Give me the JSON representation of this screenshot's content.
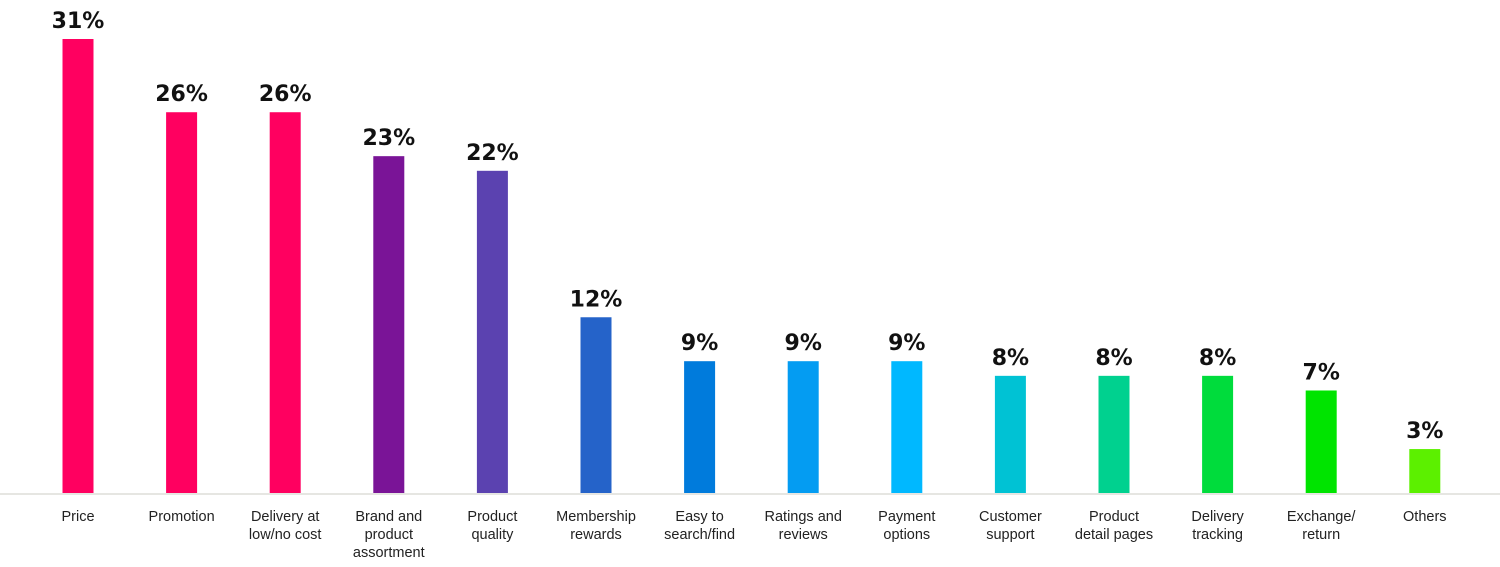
{
  "chart_data": {
    "type": "bar",
    "title": "",
    "xlabel": "",
    "ylabel": "",
    "ylim": [
      0,
      31
    ],
    "grid": false,
    "categories": [
      [
        "Price"
      ],
      [
        "Promotion"
      ],
      [
        "Delivery at",
        "low/no cost"
      ],
      [
        "Brand and",
        "product",
        "assortment"
      ],
      [
        "Product",
        "quality"
      ],
      [
        "Membership",
        "rewards"
      ],
      [
        "Easy to",
        "search/find"
      ],
      [
        "Ratings and",
        "reviews"
      ],
      [
        "Payment",
        "options"
      ],
      [
        "Customer",
        "support"
      ],
      [
        "Product",
        "detail pages"
      ],
      [
        "Delivery",
        "tracking"
      ],
      [
        "Exchange/",
        "return"
      ],
      [
        "Others"
      ]
    ],
    "values": [
      31,
      26,
      26,
      23,
      22,
      12,
      9,
      9,
      9,
      8,
      8,
      8,
      7,
      3
    ],
    "value_labels": [
      "31%",
      "26%",
      "26%",
      "23%",
      "22%",
      "12%",
      "9%",
      "9%",
      "9%",
      "8%",
      "8%",
      "8%",
      "7%",
      "3%"
    ],
    "colors": [
      "#ff0060",
      "#ff0060",
      "#ff0060",
      "#7a1497",
      "#5b42b0",
      "#2563c9",
      "#007bdc",
      "#049cf2",
      "#00b8ff",
      "#00c2d4",
      "#00d18f",
      "#00dc3c",
      "#00e400",
      "#5cf000"
    ],
    "axis_color": "#e6e6e2"
  }
}
